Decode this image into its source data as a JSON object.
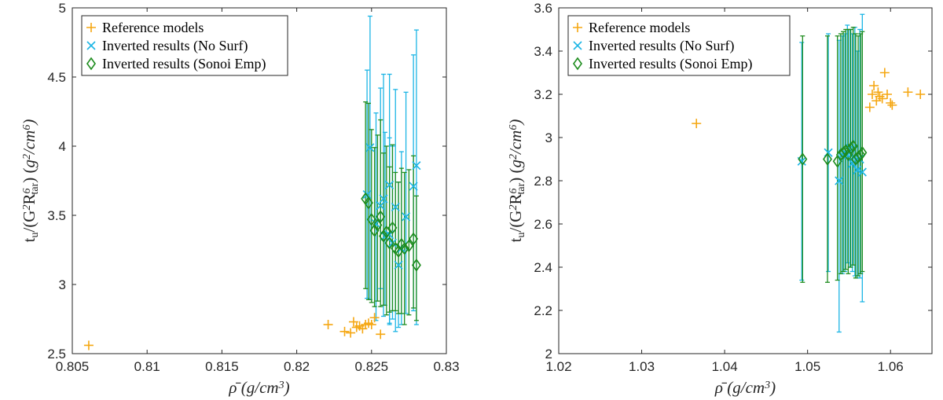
{
  "figure_title": "",
  "colors": {
    "reference": "#F5A712",
    "no_surf": "#1CB5E5",
    "sonoi": "#1E8C1E",
    "axis": "#262626"
  },
  "chart_data": [
    {
      "type": "scatter",
      "title": "",
      "xlabel": "ρ̄ (g/cm3)",
      "ylabel": "tu/(G2R6tar) (g2/cm6)",
      "xlim": [
        0.805,
        0.83
      ],
      "ylim": [
        2.5,
        5
      ],
      "xticks": [
        0.805,
        0.81,
        0.815,
        0.82,
        0.825,
        0.83
      ],
      "xtick_labels": [
        "0.805",
        "0.81",
        "0.815",
        "0.82",
        "0.825",
        "0.83"
      ],
      "yticks": [
        2.5,
        3,
        3.5,
        4,
        4.5,
        5
      ],
      "ytick_labels": [
        "2.5",
        "3",
        "3.5",
        "4",
        "4.5",
        "5"
      ],
      "legend": {
        "position": "top-left",
        "entries": [
          "Reference models",
          "Inverted results (No Surf)",
          "Inverted results (Sonoi Emp)"
        ]
      },
      "series": [
        {
          "name": "Reference models",
          "marker": "plus",
          "x": [
            0.8061,
            0.8221,
            0.8232,
            0.8238,
            0.824,
            0.8242,
            0.8244,
            0.8246,
            0.8248,
            0.825,
            0.8252,
            0.8256,
            0.8236
          ],
          "y": [
            2.56,
            2.71,
            2.66,
            2.73,
            2.69,
            2.7,
            2.68,
            2.71,
            2.72,
            2.71,
            2.76,
            2.64,
            2.65
          ]
        },
        {
          "name": "Inverted results (No Surf)",
          "marker": "x",
          "x": [
            0.8247,
            0.8249,
            0.8253,
            0.8256,
            0.8259,
            0.8262,
            0.8264,
            0.8266,
            0.8268,
            0.827,
            0.8273,
            0.8278,
            0.828,
            0.8262,
            0.8258
          ],
          "y": [
            3.65,
            3.99,
            3.44,
            3.57,
            3.35,
            3.72,
            3.3,
            3.56,
            3.14,
            3.26,
            3.49,
            3.71,
            3.86,
            3.36,
            3.62
          ],
          "yerr_low": [
            0.75,
            1.1,
            0.7,
            0.6,
            0.5,
            1.0,
            0.55,
            0.9,
            0.45,
            0.55,
            0.7,
            0.9,
            1.15,
            0.65,
            0.85
          ],
          "yerr_high": [
            0.9,
            0.95,
            0.8,
            0.85,
            0.75,
            0.8,
            0.7,
            0.85,
            0.6,
            0.7,
            0.9,
            0.95,
            0.98,
            0.7,
            0.9
          ]
        },
        {
          "name": "Inverted results (Sonoi Emp)",
          "marker": "diamond",
          "x": [
            0.8246,
            0.8248,
            0.825,
            0.8252,
            0.8254,
            0.8256,
            0.8258,
            0.826,
            0.8262,
            0.8264,
            0.8266,
            0.8268,
            0.827,
            0.8272,
            0.8275,
            0.8278,
            0.828
          ],
          "y": [
            3.62,
            3.59,
            3.47,
            3.39,
            3.43,
            3.49,
            3.35,
            3.38,
            3.3,
            3.41,
            3.26,
            3.24,
            3.29,
            3.26,
            3.28,
            3.33,
            3.14
          ],
          "yerr_low": [
            0.65,
            0.7,
            0.6,
            0.55,
            0.55,
            0.65,
            0.5,
            0.6,
            0.5,
            0.6,
            0.45,
            0.45,
            0.5,
            0.55,
            0.5,
            0.5,
            0.4
          ],
          "yerr_high": [
            0.7,
            0.72,
            0.65,
            0.6,
            0.65,
            0.7,
            0.6,
            0.62,
            0.55,
            0.6,
            0.55,
            0.5,
            0.55,
            0.55,
            0.55,
            0.6,
            0.5
          ]
        }
      ]
    },
    {
      "type": "scatter",
      "title": "",
      "xlabel": "ρ̄ (g/cm3)",
      "ylabel": "tu/(G2R6tar) (g2/cm6)",
      "xlim": [
        1.02,
        1.065
      ],
      "ylim": [
        2,
        3.6
      ],
      "xticks": [
        1.02,
        1.03,
        1.04,
        1.05,
        1.06
      ],
      "xtick_labels": [
        "1.02",
        "1.03",
        "1.04",
        "1.05",
        "1.06"
      ],
      "yticks": [
        2,
        2.2,
        2.4,
        2.6,
        2.8,
        3,
        3.2,
        3.4,
        3.6
      ],
      "ytick_labels": [
        "2",
        "2.2",
        "2.4",
        "2.6",
        "2.8",
        "3",
        "3.2",
        "3.4",
        "3.6"
      ],
      "legend": {
        "position": "top-left",
        "entries": [
          "Reference models",
          "Inverted results (No Surf)",
          "Inverted results (Sonoi Emp)"
        ]
      },
      "series": [
        {
          "name": "Reference models",
          "marker": "plus",
          "x": [
            1.0366,
            1.0578,
            1.058,
            1.0583,
            1.0585,
            1.0587,
            1.059,
            1.0593,
            1.0596,
            1.06,
            1.0602,
            1.0621,
            1.0636,
            1.0575
          ],
          "y": [
            3.065,
            3.2,
            3.24,
            3.17,
            3.21,
            3.19,
            3.18,
            3.3,
            3.2,
            3.16,
            3.15,
            3.21,
            3.2,
            3.14
          ]
        },
        {
          "name": "Inverted results (No Surf)",
          "marker": "x",
          "x": [
            1.0493,
            1.0525,
            1.0538,
            1.0542,
            1.0545,
            1.0548,
            1.0551,
            1.0554,
            1.0557,
            1.056,
            1.0563,
            1.0566
          ],
          "y": [
            2.89,
            2.93,
            2.8,
            2.92,
            2.93,
            2.92,
            2.95,
            2.88,
            2.91,
            2.85,
            2.9,
            2.84
          ],
          "yerr_low": [
            0.55,
            0.55,
            0.7,
            0.55,
            0.55,
            0.5,
            0.55,
            0.5,
            0.55,
            0.5,
            0.55,
            0.6
          ],
          "yerr_high": [
            0.55,
            0.55,
            0.65,
            0.55,
            0.55,
            0.6,
            0.55,
            0.6,
            0.6,
            0.55,
            0.6,
            0.73
          ]
        },
        {
          "name": "Inverted results (Sonoi Emp)",
          "marker": "diamond",
          "x": [
            1.0494,
            1.0524,
            1.0536,
            1.054,
            1.0543,
            1.0546,
            1.0549,
            1.0552,
            1.0555,
            1.0558,
            1.0561,
            1.0564,
            1.0566
          ],
          "y": [
            2.9,
            2.9,
            2.89,
            2.92,
            2.93,
            2.94,
            2.92,
            2.95,
            2.96,
            2.9,
            2.91,
            2.92,
            2.93
          ],
          "yerr_low": [
            0.57,
            0.57,
            0.55,
            0.55,
            0.55,
            0.55,
            0.55,
            0.55,
            0.55,
            0.55,
            0.55,
            0.55,
            0.55
          ],
          "yerr_high": [
            0.57,
            0.57,
            0.58,
            0.56,
            0.56,
            0.56,
            0.58,
            0.55,
            0.55,
            0.58,
            0.56,
            0.56,
            0.56
          ]
        }
      ]
    }
  ]
}
